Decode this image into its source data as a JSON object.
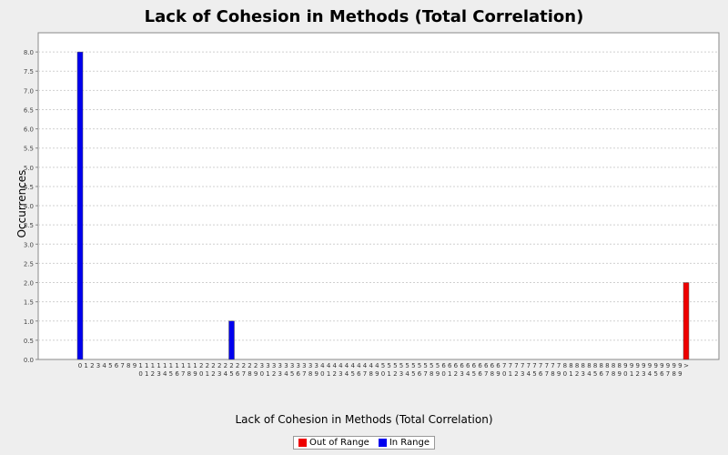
{
  "chart_data": {
    "type": "bar",
    "title": "Lack of Cohesion in Methods (Total Correlation)",
    "xlabel": "Lack of Cohesion in Methods (Total Correlation)",
    "ylabel": "Occurrences",
    "ylim": [
      0,
      8.5
    ],
    "y_ticks": [
      "0.0",
      "0.5",
      "1.0",
      "1.5",
      "2.0",
      "2.5",
      "3.0",
      "3.5",
      "4.0",
      "4.5",
      "5.0",
      "5.5",
      "6.0",
      "6.5",
      "7.0",
      "7.5",
      "8.0"
    ],
    "grid": true,
    "legend_position": "bottom",
    "series": [
      {
        "name": "Out of Range",
        "color": "#ee0000"
      },
      {
        "name": "In Range",
        "color": "#0000ee"
      }
    ],
    "categories": [
      "0",
      "1",
      "2",
      "3",
      "4",
      "5",
      "6",
      "7",
      "8",
      "9",
      "10",
      "11",
      "12",
      "13",
      "14",
      "15",
      "16",
      "17",
      "18",
      "19",
      "20",
      "21",
      "22",
      "23",
      "24",
      "25",
      "26",
      "27",
      "28",
      "29",
      "30",
      "31",
      "32",
      "33",
      "34",
      "35",
      "36",
      "37",
      "38",
      "39",
      "40",
      "41",
      "42",
      "43",
      "44",
      "45",
      "46",
      "47",
      "48",
      "49",
      "50",
      "51",
      "52",
      "53",
      "54",
      "55",
      "56",
      "57",
      "58",
      "59",
      "60",
      "61",
      "62",
      "63",
      "64",
      "65",
      "66",
      "67",
      "68",
      "69",
      "70",
      "71",
      "72",
      "73",
      "74",
      "75",
      "76",
      "77",
      "78",
      "79",
      "80",
      "81",
      "82",
      "83",
      "84",
      "85",
      "86",
      "87",
      "88",
      "89",
      "90",
      "91",
      "92",
      "93",
      "94",
      "95",
      "96",
      "97",
      "98",
      "99",
      ">"
    ],
    "bars": [
      {
        "category": "0",
        "value": 8,
        "series": "In Range"
      },
      {
        "category": "25",
        "value": 1,
        "series": "In Range"
      },
      {
        "category": ">",
        "value": 2,
        "series": "Out of Range"
      }
    ]
  }
}
